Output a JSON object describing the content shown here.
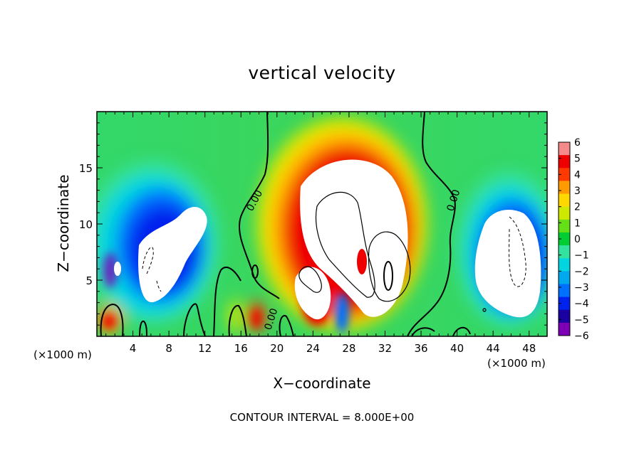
{
  "chart_data": {
    "type": "heatmap",
    "title": "vertical velocity",
    "xlabel": "X−coordinate",
    "ylabel": "Z−coordinate",
    "x_unit_left": "(×1000 m)",
    "x_unit_right": "(×1000 m)",
    "footer": "CONTOUR INTERVAL = 8.000E+00",
    "xlim": [
      0,
      50
    ],
    "ylim": [
      0,
      20
    ],
    "x_ticks": [
      4,
      8,
      12,
      16,
      20,
      24,
      28,
      32,
      36,
      40,
      44,
      48
    ],
    "y_ticks": [
      5,
      10,
      15
    ],
    "colorbar": {
      "ticks": [
        6,
        5,
        4,
        3,
        2,
        1,
        0,
        -1,
        -2,
        -3,
        -4,
        -5,
        -6
      ],
      "colors": [
        "#f58a8a",
        "#ee0000",
        "#ff3a00",
        "#ff9a00",
        "#ffd800",
        "#cfe800",
        "#66e016",
        "#00cc33",
        "#33e29e",
        "#00d5e0",
        "#00a8ee",
        "#0070ff",
        "#0022ee",
        "#1a00a0",
        "#7e00b4"
      ],
      "above_max": "#ffffff",
      "below_min": "#ffffff"
    },
    "contour_labels": [
      "0.00",
      "0.00",
      "0.00"
    ],
    "features": [
      {
        "name": "central updraft",
        "x_range": [
          19,
          35
        ],
        "z_range": [
          0.5,
          17.5
        ],
        "peak": "> 6"
      },
      {
        "name": "left downdraft",
        "x_range": [
          1,
          13
        ],
        "z_range": [
          2,
          16
        ],
        "peak": "< -6"
      },
      {
        "name": "right downdraft",
        "x_range": [
          40,
          50
        ],
        "z_range": [
          1.5,
          16
        ],
        "peak": "< -6"
      }
    ]
  }
}
